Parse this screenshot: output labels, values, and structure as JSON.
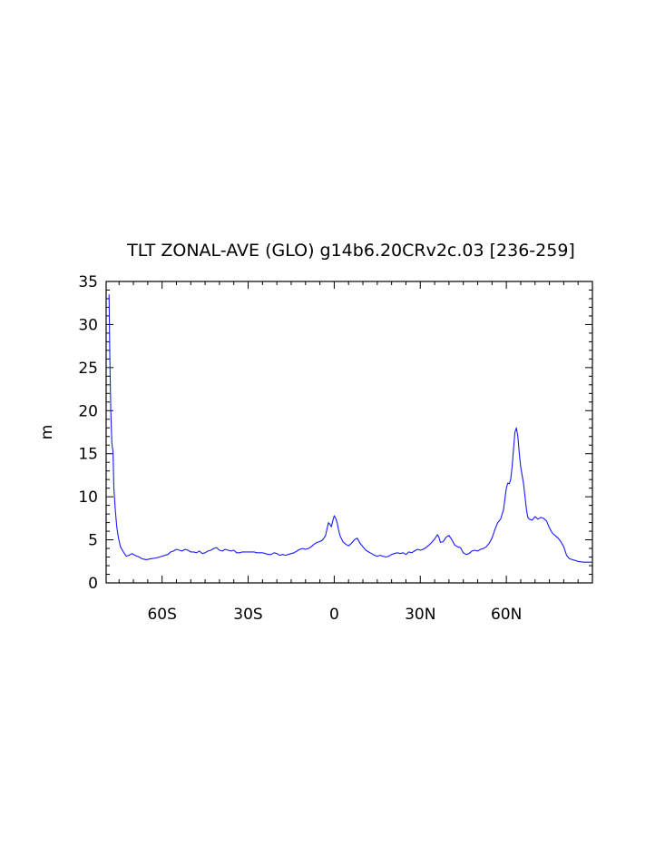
{
  "chart_data": {
    "type": "line",
    "title": "TLT ZONAL-AVE (GLO) g14b6.20CRv2c.03 [236-259]",
    "xlabel": "",
    "ylabel": "m",
    "xlim": [
      -79.5,
      90
    ],
    "ylim": [
      0,
      35
    ],
    "x_ticks": [
      {
        "value": -60,
        "label": "60S"
      },
      {
        "value": -30,
        "label": "30S"
      },
      {
        "value": 0,
        "label": "0"
      },
      {
        "value": 30,
        "label": "30N"
      },
      {
        "value": 60,
        "label": "60N"
      }
    ],
    "y_ticks": [
      0,
      5,
      10,
      15,
      20,
      25,
      30,
      35
    ],
    "grid": false,
    "series": [
      {
        "color": "#1a1aff",
        "points": [
          [
            -78.5,
            33.5
          ],
          [
            -78.2,
            26
          ],
          [
            -77.9,
            20
          ],
          [
            -77.5,
            16.2
          ],
          [
            -77.1,
            15.2
          ],
          [
            -76.8,
            11
          ],
          [
            -76.3,
            8.5
          ],
          [
            -75.8,
            6.5
          ],
          [
            -75.2,
            5.2
          ],
          [
            -74.5,
            4.2
          ],
          [
            -73.5,
            3.6
          ],
          [
            -72.5,
            3.1
          ],
          [
            -71.5,
            3.2
          ],
          [
            -70.5,
            3.4
          ],
          [
            -69.5,
            3.2
          ],
          [
            -68,
            3.0
          ],
          [
            -67,
            2.8
          ],
          [
            -65.5,
            2.7
          ],
          [
            -64,
            2.8
          ],
          [
            -62,
            2.9
          ],
          [
            -60,
            3.1
          ],
          [
            -58,
            3.3
          ],
          [
            -57,
            3.6
          ],
          [
            -56,
            3.7
          ],
          [
            -55,
            3.9
          ],
          [
            -54,
            3.8
          ],
          [
            -53,
            3.7
          ],
          [
            -52,
            3.9
          ],
          [
            -51,
            3.8
          ],
          [
            -50,
            3.6
          ],
          [
            -49,
            3.6
          ],
          [
            -48,
            3.5
          ],
          [
            -47,
            3.7
          ],
          [
            -46,
            3.4
          ],
          [
            -45,
            3.5
          ],
          [
            -44,
            3.7
          ],
          [
            -43,
            3.8
          ],
          [
            -42,
            4.0
          ],
          [
            -41,
            4.1
          ],
          [
            -40,
            3.8
          ],
          [
            -39,
            3.7
          ],
          [
            -38,
            3.9
          ],
          [
            -37,
            3.8
          ],
          [
            -36,
            3.7
          ],
          [
            -35,
            3.8
          ],
          [
            -34,
            3.5
          ],
          [
            -33,
            3.5
          ],
          [
            -32,
            3.6
          ],
          [
            -31,
            3.6
          ],
          [
            -30,
            3.6
          ],
          [
            -29,
            3.6
          ],
          [
            -28,
            3.6
          ],
          [
            -27,
            3.5
          ],
          [
            -26,
            3.5
          ],
          [
            -25,
            3.5
          ],
          [
            -24,
            3.4
          ],
          [
            -23,
            3.3
          ],
          [
            -22,
            3.3
          ],
          [
            -21,
            3.5
          ],
          [
            -20,
            3.4
          ],
          [
            -19,
            3.2
          ],
          [
            -18,
            3.3
          ],
          [
            -17,
            3.2
          ],
          [
            -16,
            3.3
          ],
          [
            -15,
            3.4
          ],
          [
            -14,
            3.5
          ],
          [
            -13,
            3.7
          ],
          [
            -12,
            3.9
          ],
          [
            -11,
            4.0
          ],
          [
            -10,
            3.9
          ],
          [
            -9,
            4.0
          ],
          [
            -8,
            4.2
          ],
          [
            -7,
            4.5
          ],
          [
            -6,
            4.7
          ],
          [
            -5,
            4.8
          ],
          [
            -4,
            5.0
          ],
          [
            -3,
            5.5
          ],
          [
            -2.5,
            6.3
          ],
          [
            -2,
            7.0
          ],
          [
            -1.5,
            6.8
          ],
          [
            -1,
            6.5
          ],
          [
            -0.5,
            7.2
          ],
          [
            0,
            7.8
          ],
          [
            0.5,
            7.5
          ],
          [
            1,
            7.0
          ],
          [
            1.5,
            6.2
          ],
          [
            2,
            5.5
          ],
          [
            3,
            4.8
          ],
          [
            4,
            4.5
          ],
          [
            5,
            4.3
          ],
          [
            6,
            4.6
          ],
          [
            7,
            5.0
          ],
          [
            8,
            5.2
          ],
          [
            9,
            4.6
          ],
          [
            10,
            4.2
          ],
          [
            11,
            3.8
          ],
          [
            12,
            3.6
          ],
          [
            13,
            3.4
          ],
          [
            14,
            3.2
          ],
          [
            15,
            3.1
          ],
          [
            16,
            3.2
          ],
          [
            17,
            3.1
          ],
          [
            18,
            3.0
          ],
          [
            19,
            3.1
          ],
          [
            20,
            3.3
          ],
          [
            21,
            3.4
          ],
          [
            22,
            3.5
          ],
          [
            23,
            3.4
          ],
          [
            24,
            3.5
          ],
          [
            25,
            3.3
          ],
          [
            26,
            3.6
          ],
          [
            27,
            3.5
          ],
          [
            28,
            3.7
          ],
          [
            29,
            3.9
          ],
          [
            30,
            3.8
          ],
          [
            31,
            3.9
          ],
          [
            32,
            4.1
          ],
          [
            33,
            4.4
          ],
          [
            34,
            4.7
          ],
          [
            35,
            5.1
          ],
          [
            36,
            5.6
          ],
          [
            36.5,
            5.3
          ],
          [
            37,
            4.7
          ],
          [
            38,
            4.8
          ],
          [
            39,
            5.3
          ],
          [
            40,
            5.5
          ],
          [
            41,
            5.0
          ],
          [
            42,
            4.4
          ],
          [
            43,
            4.2
          ],
          [
            44,
            4.1
          ],
          [
            45,
            3.5
          ],
          [
            46,
            3.3
          ],
          [
            47,
            3.4
          ],
          [
            48,
            3.7
          ],
          [
            49,
            3.8
          ],
          [
            50,
            3.7
          ],
          [
            51,
            3.9
          ],
          [
            52,
            4.0
          ],
          [
            53,
            4.2
          ],
          [
            54,
            4.6
          ],
          [
            55,
            5.2
          ],
          [
            56,
            6.2
          ],
          [
            57,
            7.0
          ],
          [
            58,
            7.4
          ],
          [
            59,
            8.5
          ],
          [
            59.5,
            9.8
          ],
          [
            60,
            11.0
          ],
          [
            60.5,
            11.6
          ],
          [
            61,
            11.5
          ],
          [
            61.5,
            12.0
          ],
          [
            62,
            13.5
          ],
          [
            62.5,
            15.5
          ],
          [
            63,
            17.5
          ],
          [
            63.5,
            18.0
          ],
          [
            64,
            17.0
          ],
          [
            64.5,
            15.0
          ],
          [
            65,
            13.5
          ],
          [
            66,
            11.5
          ],
          [
            66.5,
            10.0
          ],
          [
            67,
            8.5
          ],
          [
            67.5,
            7.6
          ],
          [
            68,
            7.4
          ],
          [
            69,
            7.3
          ],
          [
            70,
            7.7
          ],
          [
            71,
            7.4
          ],
          [
            72,
            7.6
          ],
          [
            73,
            7.5
          ],
          [
            74,
            7.2
          ],
          [
            75,
            6.4
          ],
          [
            76,
            5.8
          ],
          [
            77,
            5.5
          ],
          [
            78,
            5.2
          ],
          [
            79,
            4.8
          ],
          [
            80,
            4.2
          ],
          [
            81,
            3.2
          ],
          [
            82,
            2.8
          ],
          [
            83,
            2.7
          ],
          [
            84,
            2.6
          ],
          [
            85,
            2.5
          ],
          [
            86,
            2.45
          ],
          [
            87,
            2.4
          ],
          [
            88,
            2.4
          ],
          [
            89,
            2.4
          ],
          [
            90,
            2.4
          ]
        ]
      }
    ]
  }
}
